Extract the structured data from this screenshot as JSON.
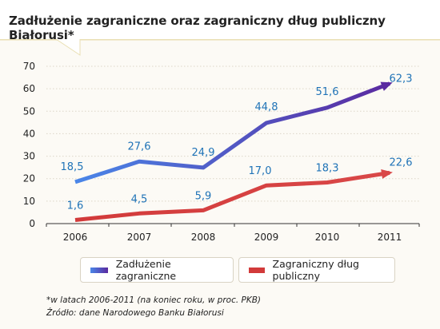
{
  "header": {
    "title": "Zadłużenie zagraniczne oraz zagraniczny dług publiczny Białorusi*"
  },
  "chart_data": {
    "type": "line",
    "title": "Zadłużenie zagraniczne oraz zagraniczny dług publiczny Białorusi*",
    "x": [
      2006,
      2007,
      2008,
      2009,
      2010,
      2011
    ],
    "categories": [
      "2006",
      "2007",
      "2008",
      "2009",
      "2010",
      "2011"
    ],
    "ylim": [
      0,
      70
    ],
    "yticks": [
      "0",
      "10",
      "20",
      "30",
      "40",
      "50",
      "60",
      "70"
    ],
    "grid": true,
    "legend_position": "bottom",
    "series": [
      {
        "name": "Zadłużenie zagraniczne",
        "values": [
          18.5,
          27.6,
          24.9,
          44.8,
          51.6,
          62.3
        ],
        "labels": [
          "18,5",
          "27,6",
          "24,9",
          "44,8",
          "51,6",
          "62,3"
        ],
        "color": "#3b4fd6"
      },
      {
        "name": "Zagraniczny dług publiczny",
        "values": [
          1.6,
          4.5,
          5.9,
          17.0,
          18.3,
          22.6
        ],
        "labels": [
          "1,6",
          "4,5",
          "5,9",
          "17,0",
          "18,3",
          "22,6"
        ],
        "color": "#d23a3a"
      }
    ]
  },
  "legend": {
    "item1": "Zadłużenie zagraniczne",
    "item2": "Zagraniczny dług publiczny"
  },
  "footnote": {
    "line1": "*w latach 2006-2011 (na koniec roku, w proc. PKB)",
    "line2": "Źródło: dane Narodowego Banku Białorusi"
  },
  "colors": {
    "label_blue": "#1f73b7",
    "grid": "#dcd6c8"
  }
}
